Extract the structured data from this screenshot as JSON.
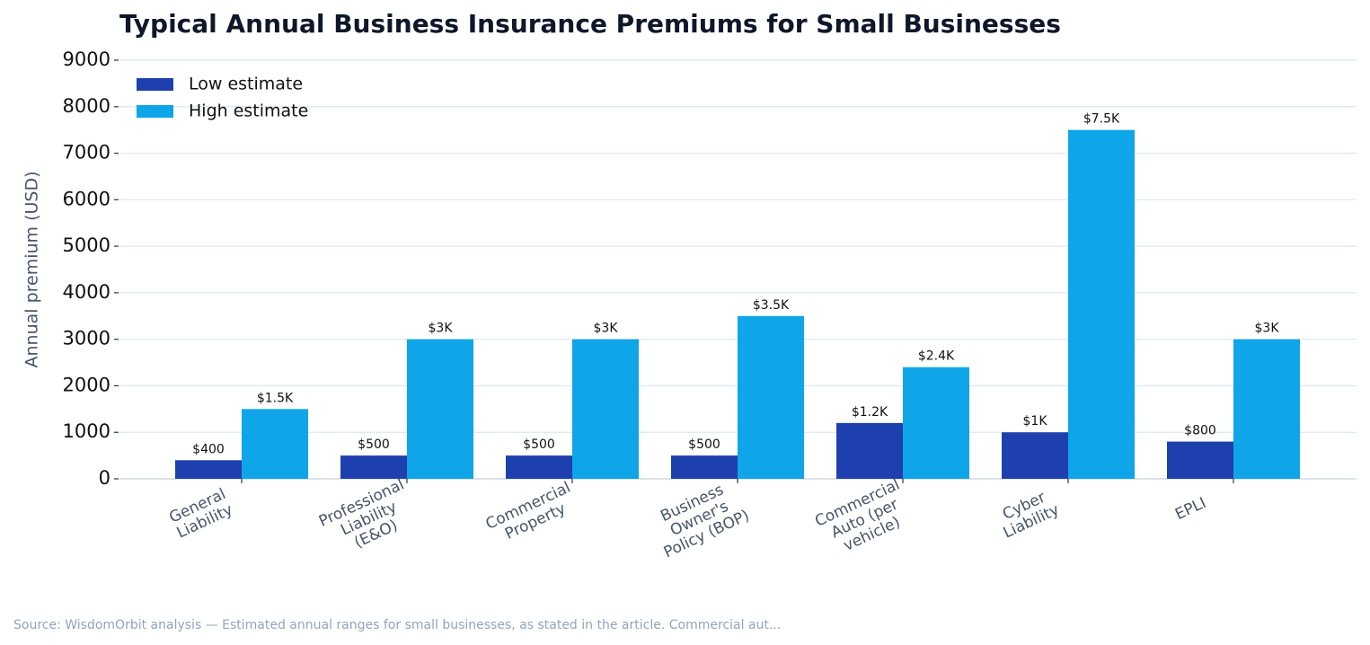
{
  "chart_data": {
    "type": "bar",
    "title": "Typical Annual Business Insurance Premiums for Small Businesses",
    "y_label": "Annual premium (USD)",
    "source": "Source: WisdomOrbit analysis — Estimated annual ranges for small businesses, as stated in the article. Commercial aut...",
    "categories": [
      "General\nLiability",
      "Professional\nLiability\n(E&O)",
      "Commercial\nProperty",
      "Business\nOwner's\nPolicy (BOP)",
      "Commercial\nAuto (per\nvehicle)",
      "Cyber\nLiability",
      "EPLI"
    ],
    "series": [
      {
        "name": "Low estimate",
        "color": "#1e40af",
        "values": [
          400,
          500,
          500,
          500,
          1200,
          1000,
          800
        ],
        "value_labels": [
          "$400",
          "$500",
          "$500",
          "$500",
          "$1.2K",
          "$1K",
          "$800"
        ]
      },
      {
        "name": "High estimate",
        "color": "#0ea5e9",
        "values": [
          1500,
          3000,
          3000,
          3500,
          2400,
          7500,
          3000
        ],
        "value_labels": [
          "$1.5K",
          "$3K",
          "$3K",
          "$3.5K",
          "$2.4K",
          "$7.5K",
          "$3K"
        ]
      }
    ],
    "ylim": [
      0,
      9000
    ],
    "yticks": [
      0,
      1000,
      2000,
      3000,
      4000,
      5000,
      6000,
      7000,
      8000,
      9000
    ],
    "grid": true,
    "legend": "upper-left"
  }
}
